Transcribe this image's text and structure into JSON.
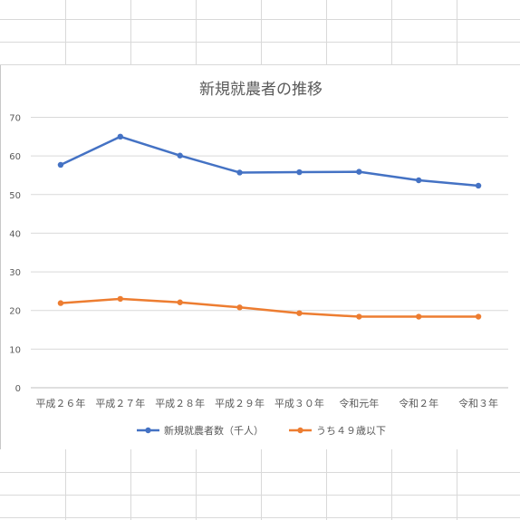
{
  "chart_data": {
    "type": "line",
    "title": "新規就農者の推移",
    "categories": [
      "平成２６年",
      "平成２７年",
      "平成２８年",
      "平成２９年",
      "平成３０年",
      "令和元年",
      "令和２年",
      "令和３年"
    ],
    "series": [
      {
        "name": "新規就農者数（千人）",
        "color": "#4472C4",
        "values": [
          57.7,
          65.0,
          60.1,
          55.7,
          55.8,
          55.9,
          53.7,
          52.3
        ]
      },
      {
        "name": "うち４９歳以下",
        "color": "#ED7D31",
        "values": [
          21.9,
          23.0,
          22.1,
          20.8,
          19.3,
          18.4,
          18.4,
          18.4
        ]
      }
    ],
    "ylim": [
      0,
      70
    ],
    "yticks": [
      0,
      10,
      20,
      30,
      40,
      50,
      60,
      70
    ],
    "grid": true,
    "legend": "bottom"
  }
}
